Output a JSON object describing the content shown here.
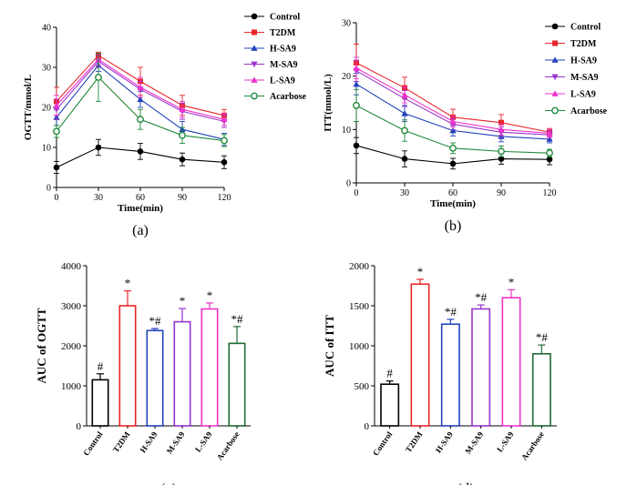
{
  "chart_data": [
    {
      "panel": "(a)",
      "type": "line",
      "xlabel": "Time(min)",
      "ylabel": "OGTT/mmol/L",
      "x": [
        0,
        30,
        60,
        90,
        120
      ],
      "xticks": [
        "0",
        "30",
        "60",
        "90",
        "120"
      ],
      "yticks": [
        "0",
        "10",
        "20",
        "30",
        "40"
      ],
      "xlim": [
        0,
        120
      ],
      "ylim": [
        0,
        40
      ],
      "series": [
        {
          "name": "Control",
          "color": "#000000",
          "marker": "circle",
          "values": [
            5.0,
            10.0,
            9.0,
            7.0,
            6.3
          ],
          "errors": [
            1.5,
            2.0,
            2.0,
            1.6,
            1.6
          ]
        },
        {
          "name": "T2DM",
          "color": "#e8262a",
          "marker": "square",
          "values": [
            21.5,
            33.0,
            26.5,
            20.5,
            18.0
          ],
          "errors": [
            3.5,
            0.8,
            3.5,
            2.5,
            1.5
          ]
        },
        {
          "name": "H-SA9",
          "color": "#2244bb",
          "marker": "triangle",
          "values": [
            17.5,
            30.5,
            22.0,
            14.5,
            12.0
          ],
          "errors": [
            2.0,
            1.5,
            2.0,
            2.0,
            1.5
          ]
        },
        {
          "name": "M-SA9",
          "color": "#9933cc",
          "marker": "triangle-down",
          "values": [
            19.5,
            31.5,
            24.5,
            19.0,
            16.5
          ],
          "errors": [
            2.5,
            1.5,
            2.0,
            2.0,
            1.5
          ]
        },
        {
          "name": "L-SA9",
          "color": "#ee33cc",
          "marker": "triangle",
          "values": [
            20.5,
            32.0,
            25.0,
            19.5,
            17.0
          ],
          "errors": [
            2.5,
            1.5,
            2.5,
            2.0,
            1.5
          ]
        },
        {
          "name": "Acarbose",
          "color": "#1f8a3a",
          "marker": "circle-open",
          "values": [
            14.0,
            27.5,
            17.0,
            13.0,
            11.7
          ],
          "errors": [
            1.5,
            6.0,
            2.5,
            2.0,
            1.5
          ]
        }
      ]
    },
    {
      "panel": "(b)",
      "type": "line",
      "xlabel": "Time(min)",
      "ylabel": "ITT(mmol/L)",
      "x": [
        0,
        30,
        60,
        90,
        120
      ],
      "xticks": [
        "0",
        "30",
        "60",
        "90",
        "120"
      ],
      "yticks": [
        "0",
        "10",
        "20",
        "30"
      ],
      "xlim": [
        0,
        120
      ],
      "ylim": [
        0,
        30
      ],
      "series": [
        {
          "name": "Control",
          "color": "#000000",
          "marker": "circle",
          "values": [
            7.0,
            4.5,
            3.6,
            4.5,
            4.4
          ],
          "errors": [
            1.5,
            1.5,
            1.0,
            1.0,
            1.0
          ]
        },
        {
          "name": "T2DM",
          "color": "#e8262a",
          "marker": "square",
          "values": [
            22.5,
            17.8,
            12.3,
            11.3,
            9.5
          ],
          "errors": [
            3.5,
            2.0,
            1.5,
            1.5,
            0.7
          ]
        },
        {
          "name": "H-SA9",
          "color": "#2244bb",
          "marker": "triangle",
          "values": [
            18.5,
            13.0,
            9.8,
            8.7,
            8.2
          ],
          "errors": [
            2.0,
            1.5,
            1.0,
            1.0,
            0.7
          ]
        },
        {
          "name": "M-SA9",
          "color": "#9933cc",
          "marker": "triangle-down",
          "values": [
            21.0,
            15.8,
            11.0,
            9.5,
            9.0
          ],
          "errors": [
            2.0,
            1.5,
            1.0,
            1.0,
            0.7
          ]
        },
        {
          "name": "L-SA9",
          "color": "#ee33cc",
          "marker": "triangle",
          "values": [
            21.5,
            16.5,
            11.5,
            10.0,
            9.3
          ],
          "errors": [
            2.0,
            1.5,
            1.0,
            1.0,
            0.7
          ]
        },
        {
          "name": "Acarbose",
          "color": "#1f8a3a",
          "marker": "circle-open",
          "values": [
            14.5,
            9.8,
            6.5,
            5.9,
            5.6
          ],
          "errors": [
            3.0,
            2.0,
            1.0,
            1.0,
            0.7
          ]
        }
      ]
    },
    {
      "panel": "(c)",
      "type": "bar",
      "ylabel": "AUC of OGTT",
      "categories": [
        "Control",
        "T2DM",
        "H-SA9",
        "M-SA9",
        "L-SA9",
        "Acarbose"
      ],
      "colors": [
        "#000000",
        "#e8262a",
        "#2244bb",
        "#9933cc",
        "#ee33cc",
        "#1f6b35"
      ],
      "values": [
        1150,
        3000,
        2380,
        2600,
        2920,
        2060
      ],
      "errors": [
        150,
        370,
        50,
        330,
        150,
        420
      ],
      "annotations": [
        "#",
        "*",
        "*#",
        "*",
        "*",
        "*#"
      ],
      "yticks": [
        "0",
        "1000",
        "2000",
        "3000",
        "4000"
      ],
      "ylim": [
        0,
        4000
      ]
    },
    {
      "panel": "(d)",
      "type": "bar",
      "ylabel": "AUC of ITT",
      "categories": [
        "Control",
        "T2DM",
        "H-SA9",
        "M-SA9",
        "L-SA9",
        "Acarbose"
      ],
      "colors": [
        "#000000",
        "#e8262a",
        "#2244bb",
        "#9933cc",
        "#ee33cc",
        "#1f6b35"
      ],
      "values": [
        520,
        1770,
        1270,
        1460,
        1600,
        900
      ],
      "errors": [
        40,
        60,
        60,
        50,
        100,
        110
      ],
      "annotations": [
        "#",
        "*",
        "*#",
        "*#",
        "*",
        "*#"
      ],
      "yticks": [
        "0",
        "500",
        "1000",
        "1500",
        "2000"
      ],
      "ylim": [
        0,
        2000
      ]
    }
  ]
}
